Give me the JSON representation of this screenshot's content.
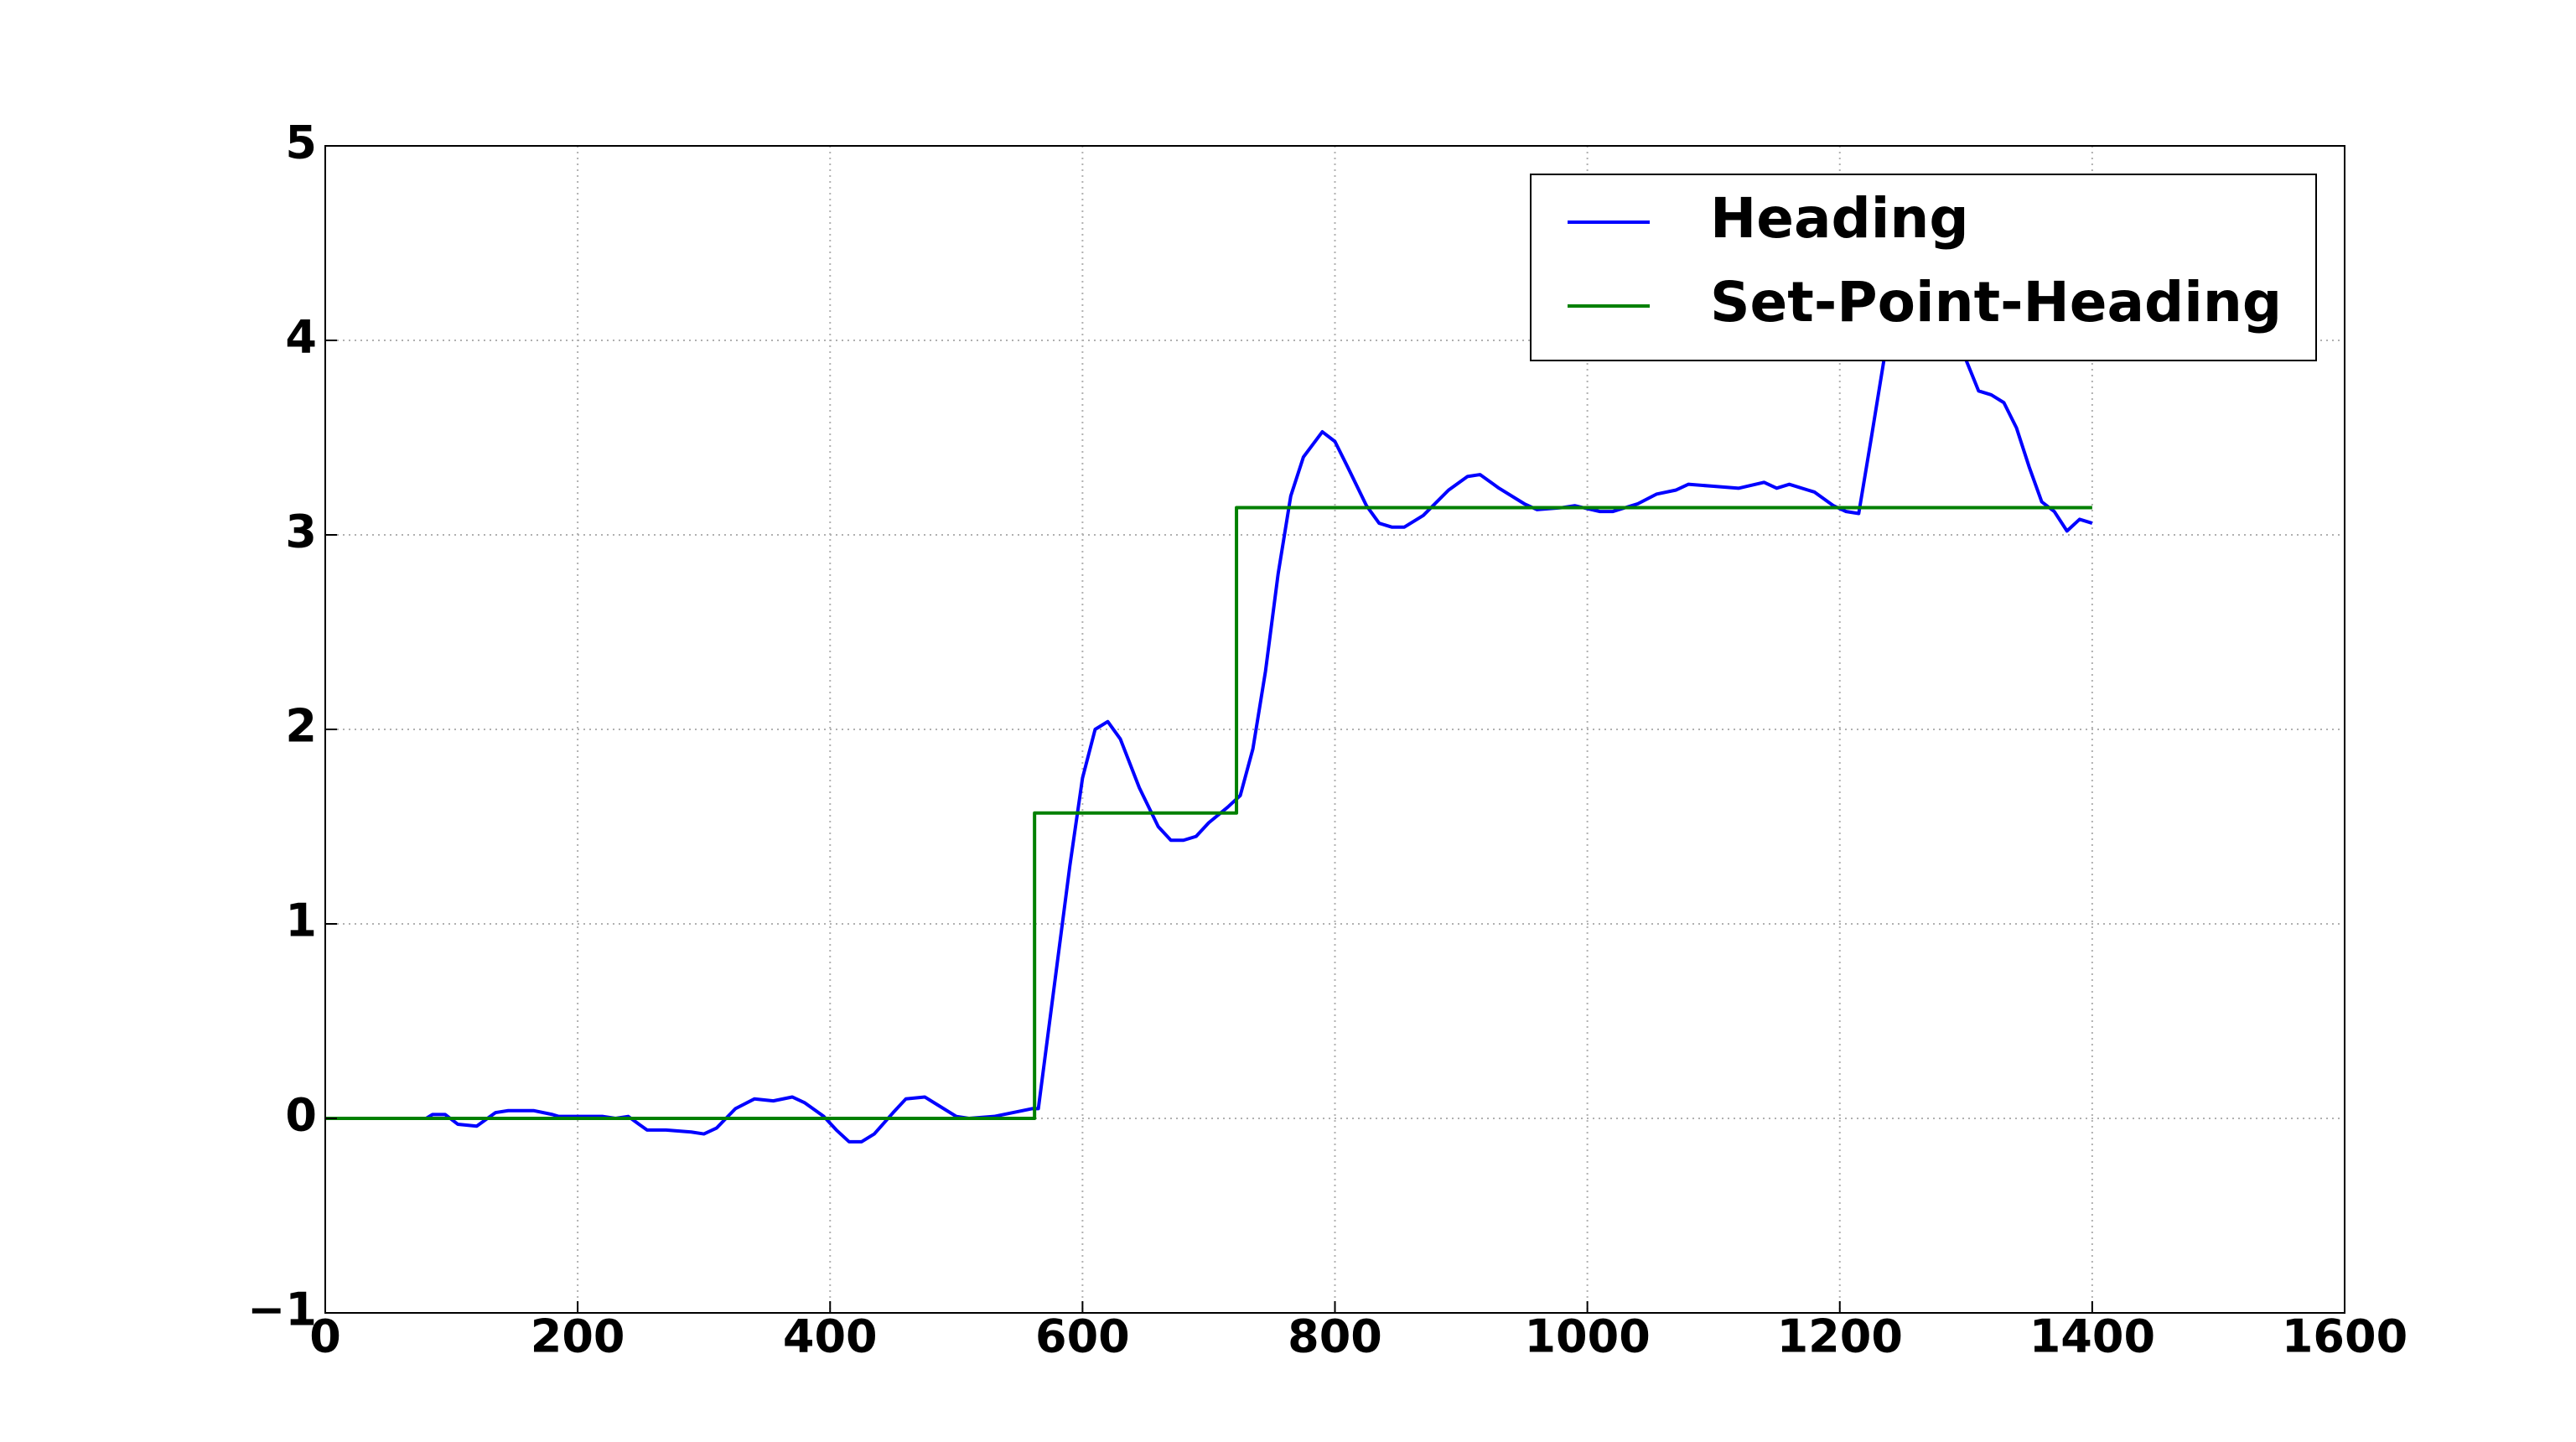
{
  "chart_data": {
    "type": "line",
    "xlim": [
      0,
      1600
    ],
    "xticks": [
      0,
      200,
      400,
      600,
      800,
      1000,
      1200,
      1400,
      1600
    ],
    "ylim": [
      -1,
      5
    ],
    "yticks": [
      {
        "value": -1,
        "label": "−1"
      },
      0,
      1,
      2,
      3,
      4,
      5
    ],
    "grid": true,
    "legend": "upper right",
    "series": [
      {
        "name": "Heading",
        "color": "#0000ff",
        "x": [
          0,
          80,
          85,
          95,
          105,
          120,
          135,
          145,
          165,
          180,
          185,
          200,
          220,
          230,
          240,
          255,
          270,
          290,
          300,
          310,
          325,
          340,
          355,
          370,
          380,
          395,
          405,
          415,
          425,
          435,
          450,
          460,
          475,
          485,
          500,
          510,
          530,
          545,
          560,
          565,
          570,
          580,
          590,
          600,
          610,
          620,
          630,
          645,
          660,
          670,
          680,
          690,
          700,
          715,
          725,
          735,
          745,
          755,
          765,
          775,
          790,
          800,
          810,
          825,
          835,
          845,
          855,
          870,
          890,
          905,
          915,
          930,
          950,
          960,
          980,
          990,
          1010,
          1020,
          1040,
          1055,
          1070,
          1080,
          1100,
          1120,
          1140,
          1150,
          1160,
          1180,
          1195,
          1205,
          1215,
          1225,
          1235,
          1245,
          1260,
          1275,
          1290,
          1300,
          1310,
          1320,
          1330,
          1340,
          1350,
          1360,
          1370,
          1380,
          1390,
          1400
        ],
        "values": [
          0,
          0,
          0.02,
          0.02,
          -0.03,
          -0.04,
          0.03,
          0.04,
          0.04,
          0.02,
          0.01,
          0.01,
          0.01,
          0,
          0.01,
          -0.06,
          -0.06,
          -0.07,
          -0.08,
          -0.05,
          0.05,
          0.1,
          0.09,
          0.11,
          0.08,
          0.01,
          -0.06,
          -0.12,
          -0.12,
          -0.08,
          0.03,
          0.1,
          0.11,
          0.07,
          0.01,
          0,
          0.01,
          0.03,
          0.05,
          0.05,
          0.3,
          0.8,
          1.3,
          1.75,
          2.0,
          2.04,
          1.95,
          1.7,
          1.5,
          1.43,
          1.43,
          1.45,
          1.52,
          1.6,
          1.66,
          1.9,
          2.3,
          2.8,
          3.2,
          3.4,
          3.53,
          3.48,
          3.35,
          3.15,
          3.06,
          3.04,
          3.04,
          3.1,
          3.23,
          3.3,
          3.31,
          3.24,
          3.16,
          3.13,
          3.14,
          3.15,
          3.12,
          3.12,
          3.16,
          3.21,
          3.23,
          3.26,
          3.25,
          3.24,
          3.27,
          3.24,
          3.26,
          3.22,
          3.15,
          3.12,
          3.11,
          3.5,
          3.9,
          4.2,
          4.35,
          4.3,
          4.1,
          3.9,
          3.74,
          3.72,
          3.68,
          3.55,
          3.35,
          3.17,
          3.12,
          3.02,
          3.08,
          3.06
        ]
      },
      {
        "name": "Set-Point-Heading",
        "color": "#008000",
        "x": [
          0,
          562,
          562,
          722,
          722,
          1400
        ],
        "values": [
          0,
          0,
          1.57,
          1.57,
          3.14,
          3.14
        ]
      }
    ]
  }
}
